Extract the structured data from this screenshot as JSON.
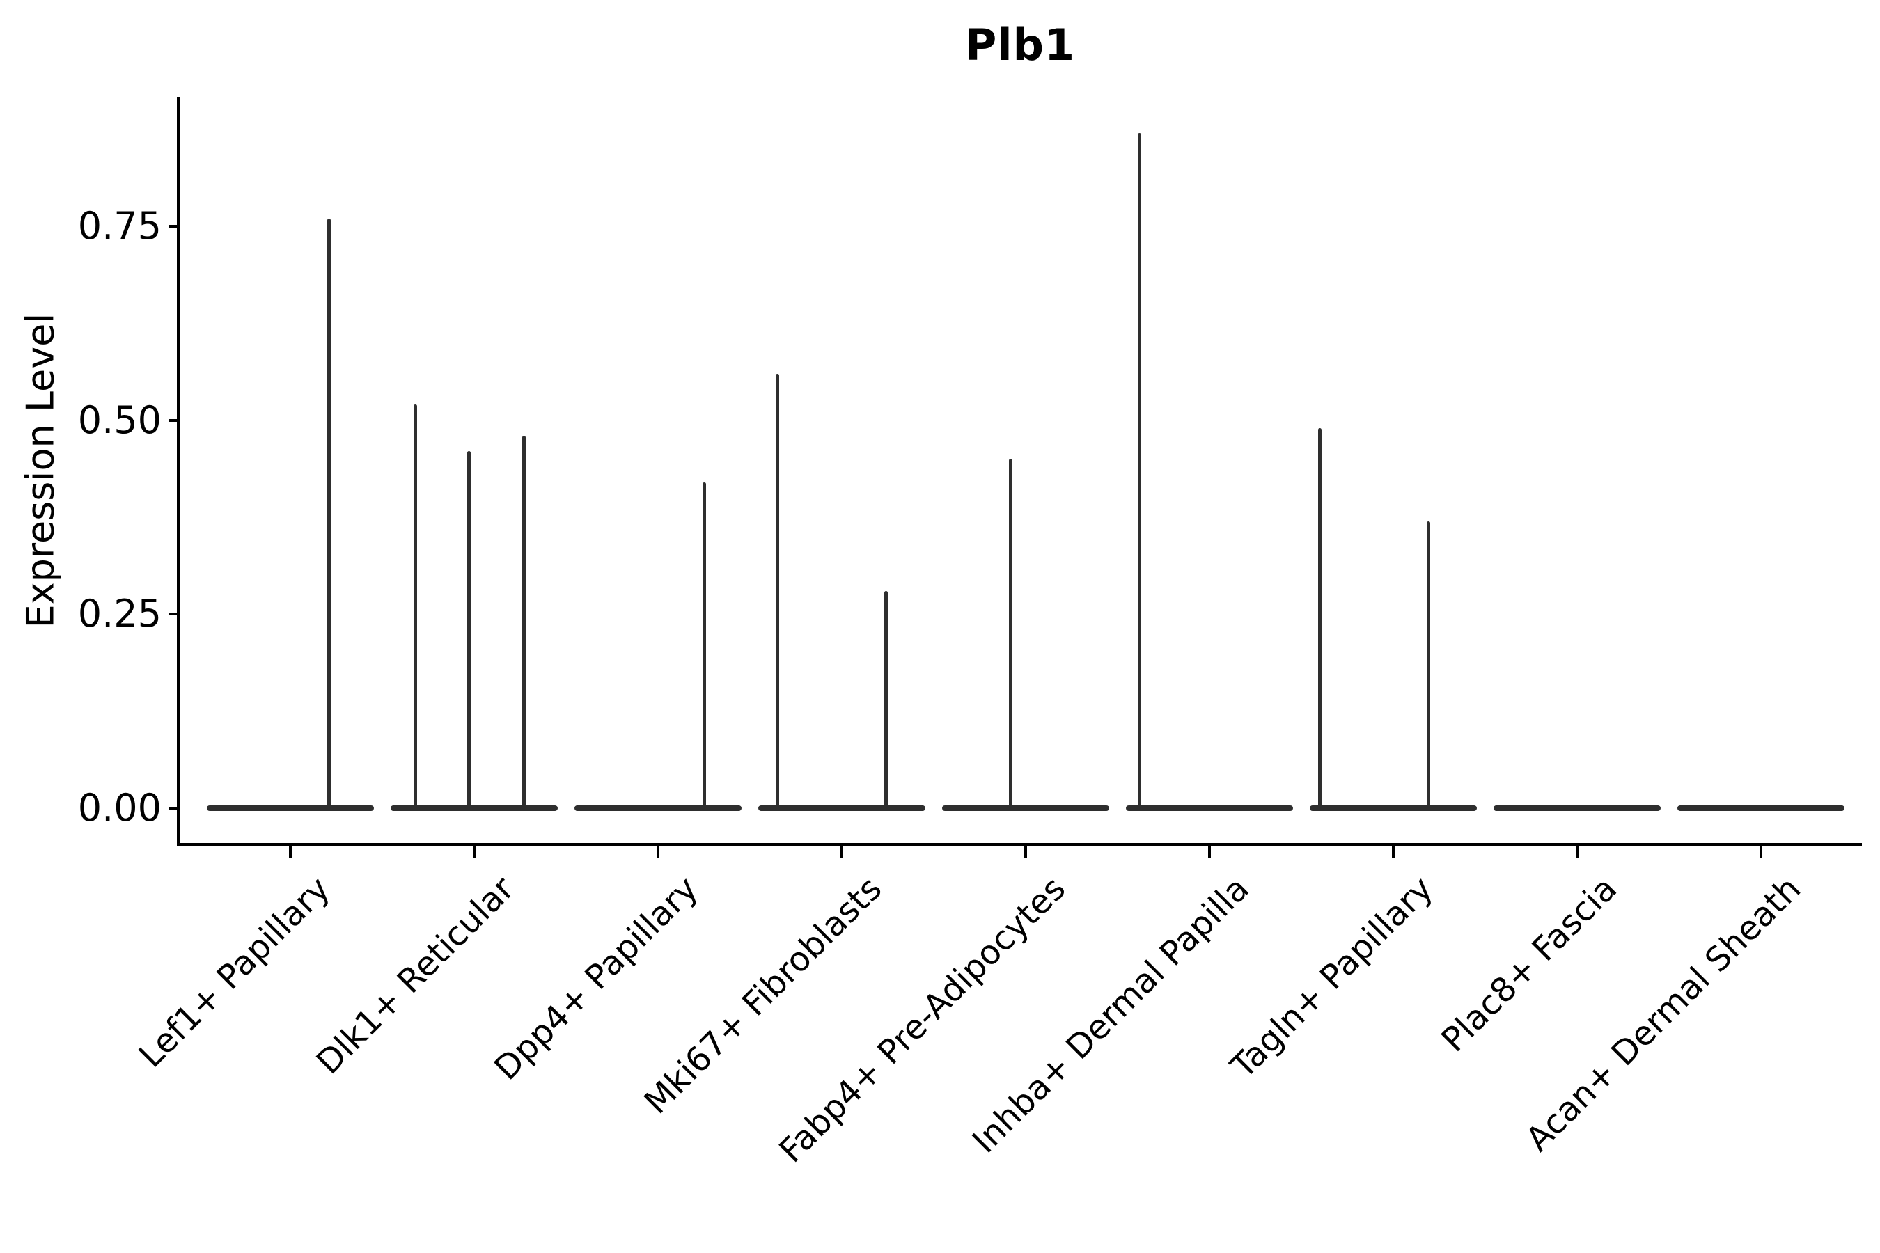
{
  "chart_data": {
    "type": "violin",
    "title": "Plb1",
    "xlabel": "",
    "ylabel": "Expression Level",
    "grid": false,
    "legend": "none",
    "ylim": [
      0,
      0.92
    ],
    "ytick_values": [
      0,
      0.25,
      0.5,
      0.75
    ],
    "ytick_labels": [
      "0.00",
      "0.25",
      "0.50",
      "0.75"
    ],
    "categories": [
      "Lef1+ Papillary",
      "Dlk1+ Reticular",
      "Dpp4+ Papillary",
      "Mki67+ Fibroblasts",
      "Fabp4+ Pre-Adipocytes",
      "Inhba+ Dermal Papilla",
      "Tagln+ Papillary",
      "Plac8+ Fascia",
      "Acan+ Dermal Sheath"
    ],
    "description": "Each category shows a violin collapsed to a flat bar at expression 0, with thin density spikes rising to the maximum expression of expressing cells.",
    "violins": [
      {
        "category": "Lef1+ Papillary",
        "zero_bulk": true,
        "spike_max_values": [
          0.76
        ],
        "spike_offsets_frac": [
          0.21
        ]
      },
      {
        "category": "Dlk1+ Reticular",
        "zero_bulk": true,
        "spike_max_values": [
          0.52,
          0.46,
          0.48
        ],
        "spike_offsets_frac": [
          -0.32,
          -0.03,
          0.27
        ]
      },
      {
        "category": "Dpp4+ Papillary",
        "zero_bulk": true,
        "spike_max_values": [
          0.42
        ],
        "spike_offsets_frac": [
          0.25
        ]
      },
      {
        "category": "Mki67+ Fibroblasts",
        "zero_bulk": true,
        "spike_max_values": [
          0.56,
          0.28
        ],
        "spike_offsets_frac": [
          -0.35,
          0.24
        ]
      },
      {
        "category": "Fabp4+ Pre-Adipocytes",
        "zero_bulk": true,
        "spike_max_values": [
          0.45
        ],
        "spike_offsets_frac": [
          -0.08
        ]
      },
      {
        "category": "Inhba+ Dermal Papilla",
        "zero_bulk": true,
        "spike_max_values": [
          0.87
        ],
        "spike_offsets_frac": [
          -0.38
        ]
      },
      {
        "category": "Tagln+ Papillary",
        "zero_bulk": true,
        "spike_max_values": [
          0.49,
          0.37
        ],
        "spike_offsets_frac": [
          -0.4,
          0.19
        ]
      },
      {
        "category": "Plac8+ Fascia",
        "zero_bulk": true,
        "spike_max_values": [],
        "spike_offsets_frac": []
      },
      {
        "category": "Acan+ Dermal Sheath",
        "zero_bulk": true,
        "spike_max_values": [],
        "spike_offsets_frac": []
      }
    ],
    "colors": {
      "violin": "#2e2e2e",
      "axis": "#000000",
      "text": "#000000",
      "background": "#ffffff"
    }
  }
}
